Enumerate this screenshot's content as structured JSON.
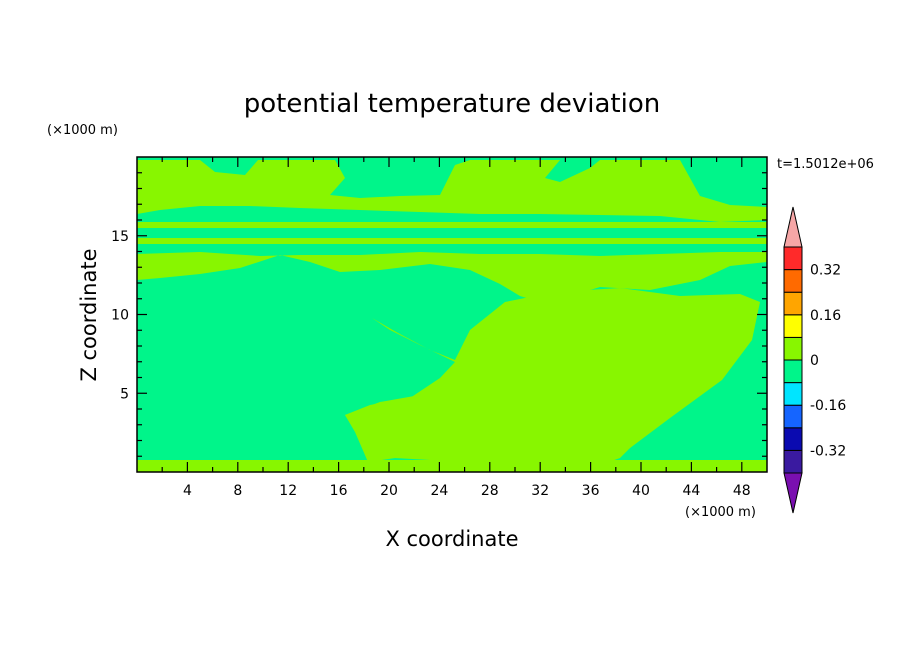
{
  "chart_data": {
    "type": "heatmap",
    "title": "potential temperature deviation",
    "xlabel": "X coordinate",
    "ylabel": "Z coordinate",
    "x_unit": "(×1000 m)",
    "y_unit": "(×1000 m)",
    "time_label": "t=1.5012e+06",
    "xlim": [
      0,
      50
    ],
    "ylim": [
      0,
      20
    ],
    "x_ticks": [
      4,
      8,
      12,
      16,
      20,
      24,
      28,
      32,
      36,
      40,
      44,
      48
    ],
    "y_ticks": [
      5,
      10,
      15
    ],
    "colorbar": {
      "colors": [
        "#7a0fb0",
        "#3a1aa0",
        "#0a0ab0",
        "#1565ff",
        "#00e5ff",
        "#00f58a",
        "#88f600",
        "#ffff00",
        "#ffa500",
        "#ff6a00",
        "#ff2a2a",
        "#f6a6a6"
      ],
      "tick_labels": [
        "0.32",
        "0.16",
        "0",
        "-0.16",
        "-0.32"
      ],
      "tick_values": [
        0.32,
        0.16,
        0,
        -0.16,
        -0.32
      ]
    },
    "colors": {
      "negative_small": "#00f58a",
      "positive_small": "#88f600"
    }
  }
}
